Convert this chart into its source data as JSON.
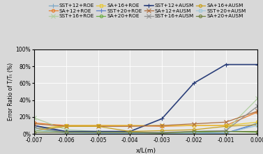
{
  "xlabel": "x/L(m)",
  "ylabel": "Error Ratio of T/Tₜ (%)",
  "xlim": [
    -0.007,
    0.0
  ],
  "ylim": [
    0.0,
    1.0
  ],
  "xticks": [
    -0.007,
    -0.006,
    -0.005,
    -0.004,
    -0.003,
    -0.002,
    -0.001,
    0.0
  ],
  "yticks": [
    0.0,
    0.2,
    0.4,
    0.6,
    0.8,
    1.0
  ],
  "ytick_labels": [
    "0%",
    "20%",
    "40%",
    "60%",
    "80%",
    "100%"
  ],
  "background_color": "#e8e8e8",
  "x_points": [
    -0.007,
    -0.006,
    -0.005,
    -0.004,
    -0.003,
    -0.002,
    -0.001,
    0.0
  ],
  "series": [
    {
      "label": "SST+12+ROE",
      "color": "#7BA7C7",
      "marker": "+",
      "markersize": 4,
      "linewidth": 0.9,
      "values": [
        0.08,
        0.02,
        0.015,
        0.01,
        0.01,
        0.01,
        0.01,
        0.13
      ]
    },
    {
      "label": "SA+12+ROE",
      "color": "#E87D2A",
      "marker": "o",
      "markersize": 3,
      "linewidth": 0.9,
      "values": [
        0.13,
        0.1,
        0.1,
        0.1,
        0.09,
        0.1,
        0.1,
        0.26
      ]
    },
    {
      "label": "SST+16+ROE",
      "color": "#B0CFA0",
      "marker": "x",
      "markersize": 4,
      "linewidth": 0.9,
      "values": [
        0.19,
        0.05,
        0.03,
        0.02,
        0.01,
        0.03,
        0.04,
        0.42
      ]
    },
    {
      "label": "SA+16+ROE",
      "color": "#E8C832",
      "marker": "s",
      "markersize": 3,
      "linewidth": 0.9,
      "values": [
        0.06,
        0.1,
        0.1,
        0.1,
        0.1,
        0.1,
        0.1,
        0.14
      ]
    },
    {
      "label": "SST+20+ROE",
      "color": "#5B7EC9",
      "marker": "+",
      "markersize": 4,
      "linewidth": 0.9,
      "values": [
        0.1,
        0.02,
        0.01,
        0.01,
        0.02,
        0.02,
        0.01,
        0.12
      ]
    },
    {
      "label": "SA+20+ROE",
      "color": "#6AAE44",
      "marker": "o",
      "markersize": 3,
      "linewidth": 0.9,
      "values": [
        0.04,
        0.03,
        0.02,
        0.02,
        0.01,
        0.02,
        0.03,
        0.02
      ]
    },
    {
      "label": "SST+12+AUSM",
      "color": "#2B3F7A",
      "marker": "+",
      "markersize": 4,
      "linewidth": 1.2,
      "values": [
        0.1,
        0.03,
        0.03,
        0.03,
        0.18,
        0.6,
        0.82,
        0.82
      ]
    },
    {
      "label": "SA+12+AUSM",
      "color": "#B07040",
      "marker": "x",
      "markersize": 4,
      "linewidth": 0.9,
      "values": [
        0.12,
        0.09,
        0.09,
        0.09,
        0.1,
        0.12,
        0.14,
        0.27
      ]
    },
    {
      "label": "SST+16+AUSM",
      "color": "#909090",
      "marker": "x",
      "markersize": 4,
      "linewidth": 0.9,
      "values": [
        0.07,
        0.02,
        0.02,
        0.02,
        0.02,
        0.03,
        0.04,
        0.33
      ]
    },
    {
      "label": "SA+16+AUSM",
      "color": "#C8A020",
      "marker": "o",
      "markersize": 3,
      "linewidth": 0.9,
      "values": [
        0.04,
        0.09,
        0.09,
        0.03,
        0.04,
        0.05,
        0.09,
        0.11
      ]
    },
    {
      "label": "SST+20+AUSM",
      "color": "#A0C8D8",
      "marker": "s",
      "markersize": 3,
      "linewidth": 0.9,
      "values": [
        0.05,
        0.01,
        0.01,
        0.01,
        0.01,
        0.01,
        0.01,
        0.1
      ]
    },
    {
      "label": "SA+20+AUSM",
      "color": "#708040",
      "marker": "o",
      "markersize": 3,
      "linewidth": 0.9,
      "values": [
        0.02,
        0.02,
        0.02,
        0.02,
        0.01,
        0.03,
        0.03,
        0.03
      ]
    }
  ]
}
